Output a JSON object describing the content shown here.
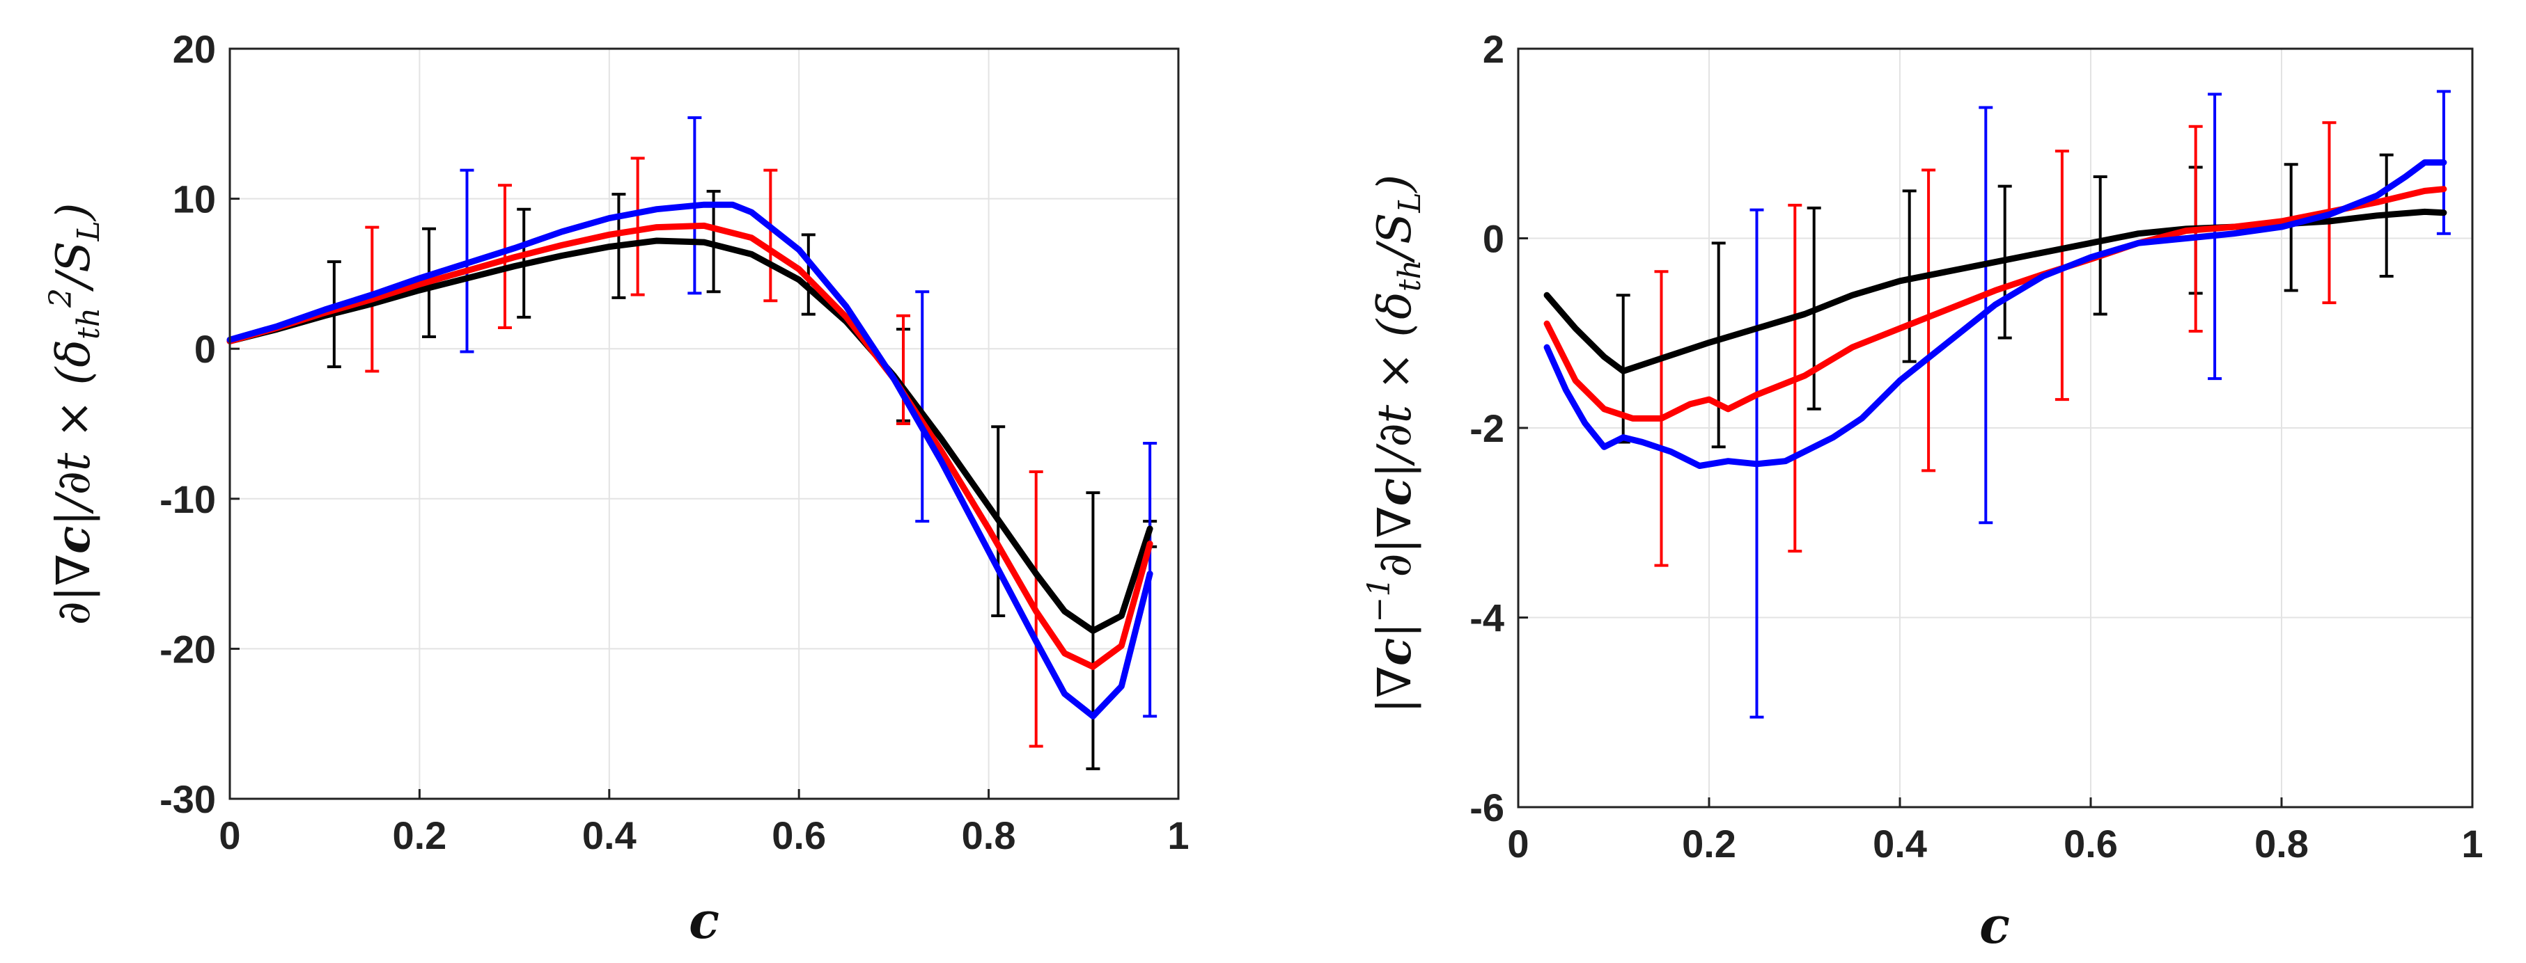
{
  "chart_data": [
    {
      "type": "line",
      "title": "",
      "xlabel": "c",
      "ylabel": "∂|∇c|/∂t × (δth²/SL)",
      "xlim": [
        0,
        1
      ],
      "ylim": [
        -30,
        20
      ],
      "xticks": [
        0,
        0.2,
        0.4,
        0.6,
        0.8,
        1
      ],
      "xtick_labels": [
        "0",
        "0.2",
        "0.4",
        "0.6",
        "0.8",
        "1"
      ],
      "yticks": [
        -30,
        -20,
        -10,
        0,
        10,
        20
      ],
      "ytick_labels": [
        "-30",
        "-20",
        "-10",
        "0",
        "10",
        "20"
      ],
      "grid": true,
      "series": [
        {
          "name": "black",
          "color": "#000000",
          "x": [
            0.0,
            0.05,
            0.1,
            0.15,
            0.2,
            0.25,
            0.3,
            0.35,
            0.4,
            0.45,
            0.5,
            0.55,
            0.6,
            0.65,
            0.7,
            0.75,
            0.8,
            0.85,
            0.88,
            0.91,
            0.94,
            0.97
          ],
          "y": [
            0.5,
            1.3,
            2.2,
            3.0,
            3.9,
            4.7,
            5.5,
            6.2,
            6.8,
            7.2,
            7.1,
            6.3,
            4.6,
            1.8,
            -1.8,
            -6.0,
            -10.5,
            -15.0,
            -17.5,
            -18.8,
            -17.8,
            -12.0
          ]
        },
        {
          "name": "red",
          "color": "#ff0000",
          "x": [
            0.0,
            0.05,
            0.1,
            0.15,
            0.2,
            0.25,
            0.3,
            0.35,
            0.4,
            0.45,
            0.5,
            0.55,
            0.6,
            0.65,
            0.7,
            0.75,
            0.8,
            0.85,
            0.88,
            0.91,
            0.94,
            0.97
          ],
          "y": [
            0.5,
            1.4,
            2.4,
            3.3,
            4.3,
            5.2,
            6.1,
            6.9,
            7.6,
            8.1,
            8.2,
            7.4,
            5.3,
            2.1,
            -2.0,
            -6.8,
            -12.0,
            -17.5,
            -20.3,
            -21.2,
            -19.8,
            -13.0
          ]
        },
        {
          "name": "blue",
          "color": "#0000ff",
          "x": [
            0.0,
            0.05,
            0.1,
            0.15,
            0.2,
            0.25,
            0.3,
            0.35,
            0.4,
            0.45,
            0.5,
            0.53,
            0.55,
            0.6,
            0.65,
            0.7,
            0.75,
            0.8,
            0.85,
            0.88,
            0.91,
            0.94,
            0.97
          ],
          "y": [
            0.6,
            1.5,
            2.6,
            3.6,
            4.7,
            5.7,
            6.7,
            7.8,
            8.7,
            9.3,
            9.6,
            9.6,
            9.1,
            6.6,
            2.8,
            -2.0,
            -7.5,
            -13.5,
            -19.5,
            -23.0,
            -24.5,
            -22.5,
            -15.0
          ]
        }
      ],
      "error_bars": [
        {
          "series": "black",
          "x": [
            0.11,
            0.21,
            0.31,
            0.41,
            0.51,
            0.61,
            0.71,
            0.81,
            0.91,
            0.97
          ],
          "y": [
            2.2,
            4.3,
            5.7,
            6.8,
            7.1,
            4.9,
            -1.8,
            -11.5,
            -18.8,
            -12.0
          ],
          "lower": [
            -1.2,
            0.8,
            2.1,
            3.4,
            3.8,
            2.3,
            -4.8,
            -17.8,
            -28.0,
            -13.2
          ],
          "upper": [
            5.8,
            8.0,
            9.3,
            10.3,
            10.5,
            7.6,
            1.3,
            -5.2,
            -9.6,
            -11.5
          ]
        },
        {
          "series": "red",
          "x": [
            0.15,
            0.29,
            0.43,
            0.57,
            0.71,
            0.85
          ],
          "y": [
            3.3,
            6.1,
            8.0,
            7.8,
            -2.0,
            -17.5
          ],
          "lower": [
            -1.5,
            1.4,
            3.6,
            3.2,
            -5.0,
            -26.5
          ],
          "upper": [
            8.1,
            10.9,
            12.7,
            11.9,
            2.2,
            -8.2
          ]
        },
        {
          "series": "blue",
          "x": [
            0.25,
            0.49,
            0.73,
            0.97
          ],
          "y": [
            5.7,
            9.6,
            -3.8,
            -15.0
          ],
          "lower": [
            -0.2,
            3.7,
            -11.5,
            -24.5
          ],
          "upper": [
            11.9,
            15.4,
            3.8,
            -6.3
          ]
        }
      ]
    },
    {
      "type": "line",
      "title": "",
      "xlabel": "c",
      "ylabel": "|∇c|⁻¹∂|∇c|/∂t × (δth/SL)",
      "xlim": [
        0,
        1
      ],
      "ylim": [
        -6,
        2
      ],
      "xticks": [
        0,
        0.2,
        0.4,
        0.6,
        0.8,
        1
      ],
      "xtick_labels": [
        "0",
        "0.2",
        "0.4",
        "0.6",
        "0.8",
        "1"
      ],
      "yticks": [
        -6,
        -4,
        -2,
        0,
        2
      ],
      "ytick_labels": [
        "-6",
        "-4",
        "-2",
        "0",
        "2"
      ],
      "grid": true,
      "series": [
        {
          "name": "black",
          "color": "#000000",
          "x": [
            0.03,
            0.06,
            0.09,
            0.11,
            0.14,
            0.17,
            0.2,
            0.25,
            0.3,
            0.35,
            0.4,
            0.45,
            0.5,
            0.55,
            0.6,
            0.65,
            0.7,
            0.75,
            0.8,
            0.85,
            0.9,
            0.95,
            0.97
          ],
          "y": [
            -0.6,
            -0.95,
            -1.25,
            -1.4,
            -1.3,
            -1.2,
            -1.1,
            -0.95,
            -0.8,
            -0.6,
            -0.45,
            -0.35,
            -0.25,
            -0.15,
            -0.05,
            0.05,
            0.1,
            0.12,
            0.15,
            0.18,
            0.24,
            0.28,
            0.27
          ]
        },
        {
          "name": "red",
          "color": "#ff0000",
          "x": [
            0.03,
            0.06,
            0.09,
            0.12,
            0.15,
            0.18,
            0.2,
            0.22,
            0.25,
            0.3,
            0.35,
            0.4,
            0.45,
            0.5,
            0.55,
            0.6,
            0.65,
            0.7,
            0.75,
            0.8,
            0.85,
            0.9,
            0.95,
            0.97
          ],
          "y": [
            -0.9,
            -1.5,
            -1.8,
            -1.9,
            -1.9,
            -1.75,
            -1.7,
            -1.8,
            -1.65,
            -1.45,
            -1.15,
            -0.95,
            -0.75,
            -0.55,
            -0.38,
            -0.22,
            -0.05,
            0.08,
            0.12,
            0.18,
            0.28,
            0.38,
            0.5,
            0.52
          ]
        },
        {
          "name": "blue",
          "color": "#0000ff",
          "x": [
            0.03,
            0.05,
            0.07,
            0.09,
            0.11,
            0.13,
            0.16,
            0.19,
            0.22,
            0.25,
            0.28,
            0.3,
            0.33,
            0.36,
            0.4,
            0.45,
            0.5,
            0.55,
            0.6,
            0.65,
            0.7,
            0.75,
            0.8,
            0.85,
            0.9,
            0.93,
            0.95,
            0.97
          ],
          "y": [
            -1.15,
            -1.6,
            -1.95,
            -2.2,
            -2.1,
            -2.15,
            -2.25,
            -2.4,
            -2.35,
            -2.38,
            -2.35,
            -2.25,
            -2.1,
            -1.9,
            -1.5,
            -1.1,
            -0.7,
            -0.4,
            -0.2,
            -0.05,
            0.0,
            0.05,
            0.12,
            0.25,
            0.45,
            0.65,
            0.8,
            0.8
          ]
        }
      ],
      "error_bars": [
        {
          "series": "black",
          "x": [
            0.11,
            0.21,
            0.31,
            0.41,
            0.51,
            0.61,
            0.71,
            0.81,
            0.91
          ],
          "y": [
            -1.4,
            -1.05,
            -0.75,
            -0.4,
            -0.25,
            -0.05,
            0.1,
            0.15,
            0.24
          ],
          "lower": [
            -2.15,
            -2.2,
            -1.8,
            -1.3,
            -1.05,
            -0.8,
            -0.58,
            -0.55,
            -0.4
          ],
          "upper": [
            -0.6,
            -0.05,
            0.32,
            0.5,
            0.55,
            0.65,
            0.75,
            0.78,
            0.88
          ]
        },
        {
          "series": "red",
          "x": [
            0.15,
            0.29,
            0.43,
            0.57,
            0.71,
            0.85
          ],
          "y": [
            -1.9,
            -1.45,
            -0.85,
            -0.35,
            0.08,
            0.28
          ],
          "lower": [
            -3.45,
            -3.3,
            -2.45,
            -1.7,
            -0.98,
            -0.68
          ],
          "upper": [
            -0.35,
            0.35,
            0.72,
            0.92,
            1.18,
            1.22
          ]
        },
        {
          "series": "blue",
          "x": [
            0.25,
            0.49,
            0.73,
            0.97
          ],
          "y": [
            -2.38,
            -0.75,
            0.03,
            0.8
          ],
          "lower": [
            -5.05,
            -3.0,
            -1.48,
            0.05
          ],
          "upper": [
            0.3,
            1.38,
            1.52,
            1.55
          ]
        }
      ]
    }
  ]
}
